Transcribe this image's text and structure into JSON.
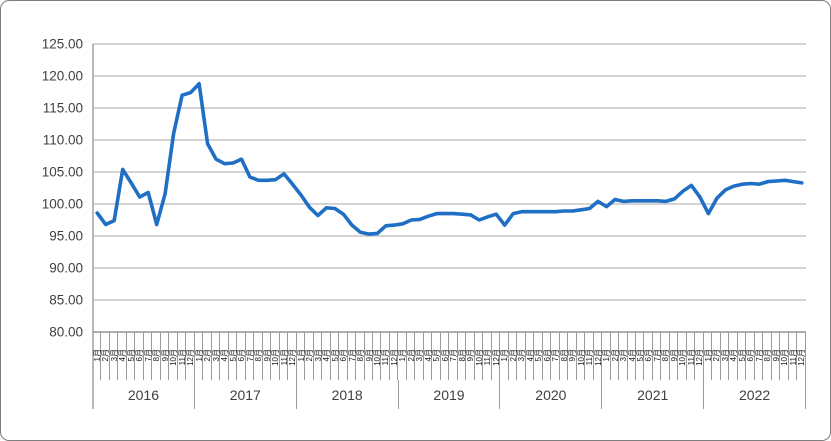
{
  "chart_data": {
    "type": "line",
    "title": "",
    "legend": "none",
    "grid": "horizontal",
    "ylim": [
      80,
      125
    ],
    "y_tick_labels": [
      "125.00",
      "120.00",
      "115.00",
      "110.00",
      "105.00",
      "100.00",
      "95.00",
      "90.00",
      "85.00",
      "80.00"
    ],
    "month_labels": [
      "1月",
      "2月",
      "3月",
      "4月",
      "5月",
      "6月",
      "7月",
      "8月",
      "9月",
      "10月",
      "11月",
      "12月"
    ],
    "years": [
      "2016",
      "2017",
      "2018",
      "2019",
      "2020",
      "2021",
      "2022"
    ],
    "line_color": "#1F6FC5",
    "series": [
      {
        "values": [
          98.6,
          96.8,
          97.4,
          105.4,
          103.3,
          101.1,
          101.8,
          96.8,
          101.6,
          111.0,
          117.0,
          117.4,
          118.8,
          109.4,
          107.0,
          106.3,
          106.4,
          107.0,
          104.2,
          103.7,
          103.7,
          103.8,
          104.7,
          103.1,
          101.4,
          99.5,
          98.2,
          99.4,
          99.3,
          98.4,
          96.7,
          95.6,
          95.3,
          95.4,
          96.6,
          96.7,
          96.9,
          97.5,
          97.6,
          98.1,
          98.5,
          98.5,
          98.5,
          98.4,
          98.3,
          97.5,
          98.0,
          98.4,
          96.7,
          98.5,
          98.8,
          98.8,
          98.8,
          98.8,
          98.8,
          98.9,
          98.9,
          99.1,
          99.3,
          100.4,
          99.6,
          100.7,
          100.4,
          100.5,
          100.5,
          100.5,
          100.5,
          100.4,
          100.8,
          102.0,
          102.9,
          101.1,
          98.5,
          100.9,
          102.2,
          102.8,
          103.1,
          103.2,
          103.1,
          103.5,
          103.6,
          103.7,
          103.5,
          103.3
        ]
      }
    ],
    "colors": {
      "gridline": "#c6c6c6",
      "axis": "#9b9b9b",
      "text": "#404040",
      "frame_border": "#7f7f7f"
    }
  }
}
